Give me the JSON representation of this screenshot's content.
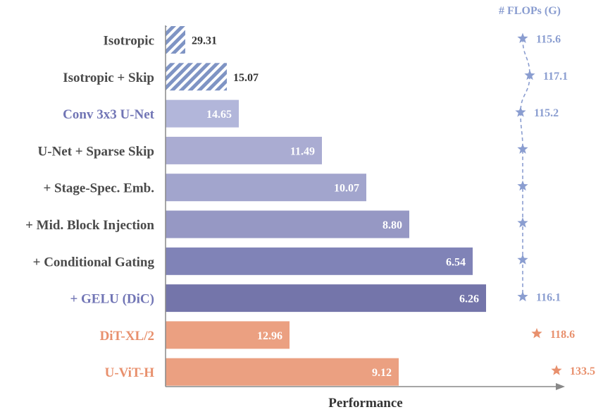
{
  "chart_data": {
    "type": "bar",
    "orientation": "horizontal",
    "xlabel": "Performance",
    "categories": [
      "Isotropic",
      "Isotropic + Skip",
      "Conv 3x3 U-Net",
      "U-Net + Sparse Skip",
      "+ Stage-Spec. Emb.",
      "+ Mid. Block Injection",
      "+ Conditional Gating",
      "+ GELU (DiC)",
      "DiT-XL/2",
      "U-ViT-H"
    ],
    "values": [
      29.31,
      15.07,
      14.65,
      11.49,
      10.07,
      8.8,
      6.54,
      6.26,
      12.96,
      9.12
    ],
    "value_labels": [
      "29.31",
      "15.07",
      "14.65",
      "11.49",
      "10.07",
      "8.80",
      "6.54",
      "6.26",
      "12.96",
      "9.12"
    ],
    "styles": [
      "hatched",
      "hatched",
      "solid",
      "solid",
      "solid",
      "solid",
      "solid",
      "solid",
      "solid",
      "solid"
    ],
    "bar_colors": [
      "#7f94c4",
      "#7f94c4",
      "#b2b6da",
      "#aaacd2",
      "#a2a5cd",
      "#9698c4",
      "#8083b7",
      "#7475aa",
      "#eba081",
      "#eba081"
    ],
    "label_colors": [
      "#4a4a4a",
      "#4a4a4a",
      "#7175b5",
      "#4a4a4a",
      "#4a4a4a",
      "#4a4a4a",
      "#4a4a4a",
      "#7175b5",
      "#e8906d",
      "#e8906d"
    ],
    "flops_title": "# FLOPs (G)",
    "flops_labels": [
      "115.6",
      "117.1",
      "115.2",
      "",
      "",
      "",
      "",
      "116.1",
      "118.6",
      "133.5"
    ],
    "flops_colors": [
      "#8a9dd0",
      "#8a9dd0",
      "#8a9dd0",
      "#8a9dd0",
      "#8a9dd0",
      "#8a9dd0",
      "#8a9dd0",
      "#8a9dd0",
      "#e8906d",
      "#e8906d"
    ],
    "flops_connected": [
      true,
      true,
      true,
      true,
      true,
      true,
      true,
      true,
      false,
      false
    ]
  }
}
